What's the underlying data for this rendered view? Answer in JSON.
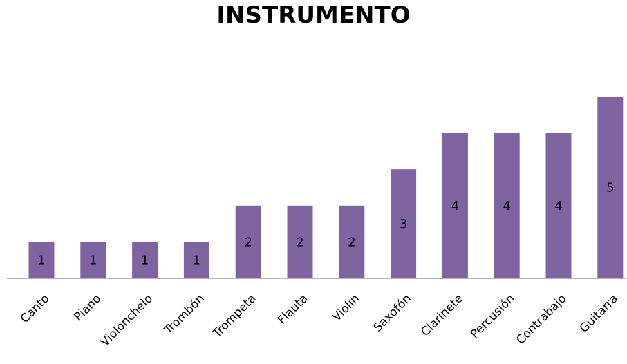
{
  "chart_data": {
    "type": "bar",
    "title": "INSTRUMENTO",
    "categories": [
      "Canto",
      "Piano",
      "Violonchelo",
      "Trombón",
      "Trompeta",
      "Flauta",
      "Violín",
      "Saxofón",
      "Clarinete",
      "Percusión",
      "Contrabajo",
      "Guitarra"
    ],
    "values": [
      1,
      1,
      1,
      1,
      2,
      2,
      2,
      3,
      4,
      4,
      4,
      5
    ],
    "xlabel": "",
    "ylabel": "",
    "ylim": [
      0,
      5
    ],
    "grid": false,
    "legend": "none",
    "data_labels": true,
    "bar_color": "#8064a2"
  }
}
